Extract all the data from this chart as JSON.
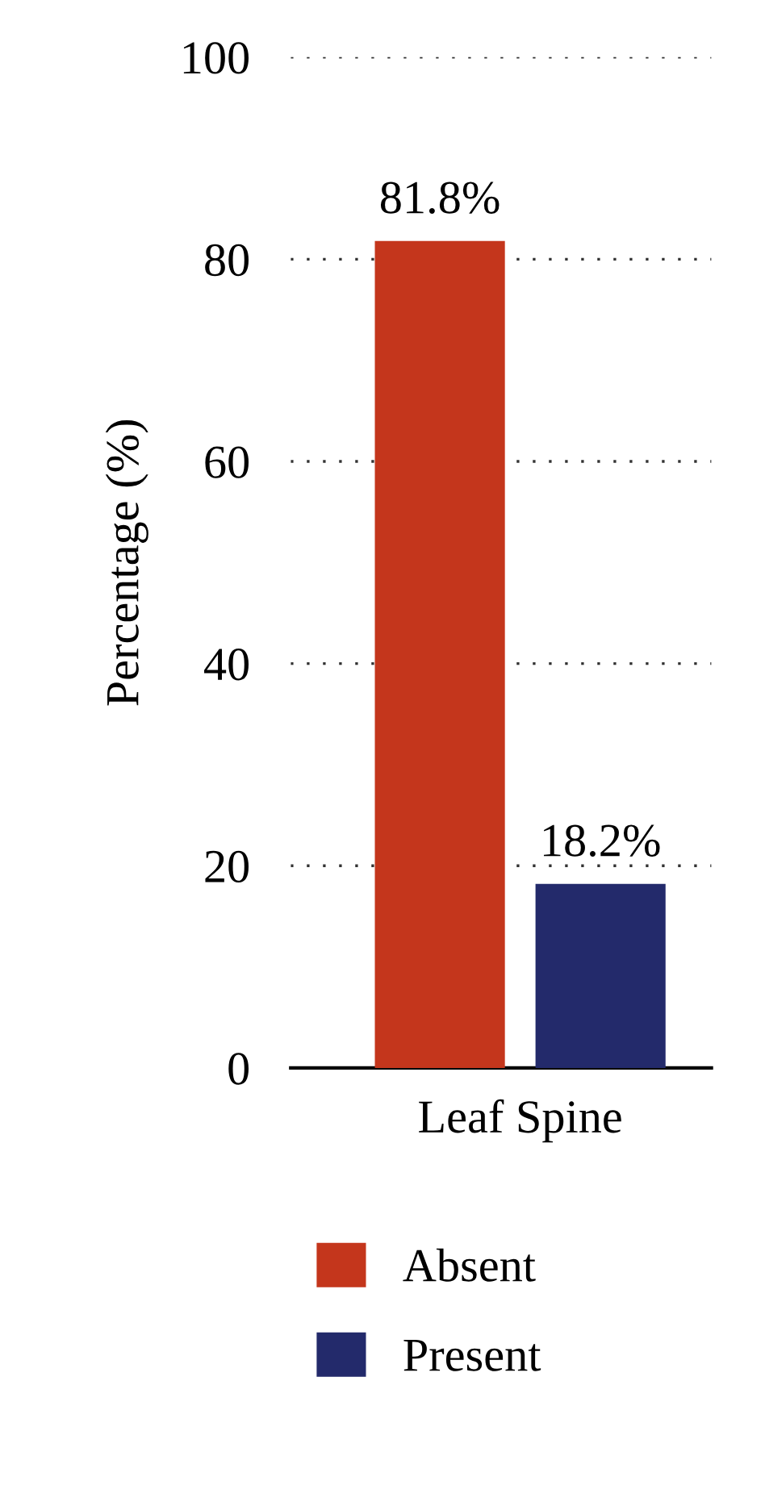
{
  "chart_data": {
    "type": "bar",
    "ylabel": "Percentage (%)",
    "categories": [
      "Leaf Spine"
    ],
    "series": [
      {
        "name": "Absent",
        "color": "#c4361c",
        "values": [
          81.8
        ],
        "value_labels": [
          "81.8%"
        ]
      },
      {
        "name": "Present",
        "color": "#232a6b",
        "values": [
          18.2
        ],
        "value_labels": [
          "18.2%"
        ]
      }
    ],
    "ylim": [
      0,
      100
    ],
    "yticks": [
      0,
      20,
      40,
      60,
      80,
      100
    ],
    "grid": "y",
    "legend": "bottom"
  }
}
